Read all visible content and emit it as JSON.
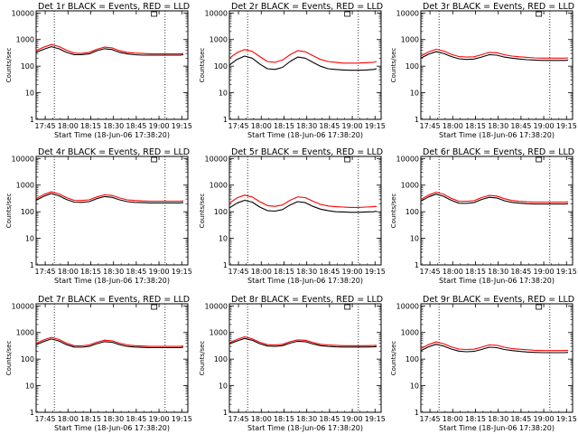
{
  "colors": {
    "events": "#000000",
    "lld": "#ff0000",
    "background": "#ffffff"
  },
  "chart_data": [
    {
      "type": "line",
      "title": "Det 1r BLACK = Events, RED = LLD",
      "xlabel": "Start Time (18-Jun-06 17:38:20)",
      "ylabel": "Counts/sec",
      "x_ticks": [
        "17:45",
        "18:00",
        "18:15",
        "18:30",
        "18:45",
        "19:00",
        "19:15"
      ],
      "y_ticks": [
        "1",
        "10",
        "100",
        "1000",
        "10000"
      ],
      "yscale": "log",
      "ylim": [
        1,
        12000
      ],
      "x_minutes_range": [
        0,
        100
      ],
      "vlines_minutes": [
        12,
        85
      ],
      "x_minutes": [
        0,
        5,
        10,
        15,
        20,
        25,
        30,
        35,
        40,
        45,
        50,
        55,
        60,
        65,
        70,
        75,
        80,
        85,
        90,
        95,
        97
      ],
      "series": [
        {
          "name": "Events",
          "color": "#000000",
          "values": [
            330,
            430,
            540,
            450,
            330,
            270,
            270,
            290,
            380,
            450,
            420,
            330,
            290,
            270,
            260,
            260,
            260,
            260,
            260,
            260,
            270
          ]
        },
        {
          "name": "LLD",
          "color": "#ff0000",
          "values": [
            380,
            520,
            650,
            550,
            400,
            310,
            300,
            330,
            430,
            520,
            490,
            380,
            330,
            310,
            300,
            290,
            290,
            290,
            290,
            290,
            300
          ]
        }
      ]
    },
    {
      "type": "line",
      "title": "Det 2r BLACK = Events, RED = LLD",
      "xlabel": "Start Time (18-Jun-06 17:38:20)",
      "ylabel": "Counts/sec",
      "x_ticks": [
        "17:45",
        "18:00",
        "18:15",
        "18:30",
        "18:45",
        "19:00",
        "19:15"
      ],
      "y_ticks": [
        "1",
        "10",
        "100",
        "1000",
        "10000"
      ],
      "yscale": "log",
      "ylim": [
        1,
        12000
      ],
      "x_minutes_range": [
        0,
        100
      ],
      "vlines_minutes": [
        12,
        85
      ],
      "x_minutes": [
        0,
        5,
        10,
        15,
        20,
        25,
        30,
        35,
        40,
        45,
        50,
        55,
        60,
        65,
        70,
        75,
        80,
        85,
        90,
        95,
        97
      ],
      "series": [
        {
          "name": "Events",
          "color": "#000000",
          "values": [
            110,
            180,
            240,
            200,
            120,
            80,
            75,
            90,
            150,
            220,
            200,
            140,
            100,
            80,
            75,
            72,
            70,
            70,
            72,
            75,
            80
          ]
        },
        {
          "name": "LLD",
          "color": "#ff0000",
          "values": [
            200,
            320,
            420,
            360,
            230,
            150,
            140,
            170,
            270,
            380,
            350,
            250,
            180,
            150,
            140,
            130,
            130,
            130,
            135,
            140,
            150
          ]
        }
      ]
    },
    {
      "type": "line",
      "title": "Det 3r BLACK = Events, RED = LLD",
      "xlabel": "Start Time (18-Jun-06 17:38:20)",
      "ylabel": "Counts/sec",
      "x_ticks": [
        "17:45",
        "18:00",
        "18:15",
        "18:30",
        "18:45",
        "19:00",
        "19:15"
      ],
      "y_ticks": [
        "1",
        "10",
        "100",
        "1000",
        "10000"
      ],
      "yscale": "log",
      "ylim": [
        1,
        12000
      ],
      "x_minutes_range": [
        0,
        100
      ],
      "vlines_minutes": [
        12,
        85
      ],
      "x_minutes": [
        0,
        5,
        10,
        15,
        20,
        25,
        30,
        35,
        40,
        45,
        50,
        55,
        60,
        65,
        70,
        75,
        80,
        85,
        90,
        95,
        97
      ],
      "series": [
        {
          "name": "Events",
          "color": "#000000",
          "values": [
            200,
            280,
            350,
            300,
            230,
            190,
            180,
            185,
            220,
            270,
            260,
            220,
            200,
            185,
            175,
            170,
            165,
            165,
            165,
            165,
            170
          ]
        },
        {
          "name": "LLD",
          "color": "#ff0000",
          "values": [
            240,
            340,
            430,
            370,
            280,
            230,
            220,
            225,
            270,
            330,
            320,
            270,
            240,
            225,
            215,
            205,
            200,
            200,
            200,
            200,
            205
          ]
        }
      ]
    },
    {
      "type": "line",
      "title": "Det 4r BLACK = Events, RED = LLD",
      "xlabel": "Start Time (18-Jun-06 17:38:20)",
      "ylabel": "Counts/sec",
      "x_ticks": [
        "17:45",
        "18:00",
        "18:15",
        "18:30",
        "18:45",
        "19:00",
        "19:15"
      ],
      "y_ticks": [
        "1",
        "10",
        "100",
        "1000",
        "10000"
      ],
      "yscale": "log",
      "ylim": [
        1,
        12000
      ],
      "x_minutes_range": [
        0,
        100
      ],
      "vlines_minutes": [
        12,
        85
      ],
      "x_minutes": [
        0,
        5,
        10,
        15,
        20,
        25,
        30,
        35,
        40,
        45,
        50,
        55,
        60,
        65,
        70,
        75,
        80,
        85,
        90,
        95,
        97
      ],
      "series": [
        {
          "name": "Events",
          "color": "#000000",
          "values": [
            270,
            380,
            480,
            400,
            290,
            230,
            225,
            240,
            310,
            370,
            350,
            280,
            240,
            225,
            220,
            215,
            215,
            215,
            215,
            215,
            220
          ]
        },
        {
          "name": "LLD",
          "color": "#ff0000",
          "values": [
            310,
            440,
            560,
            470,
            340,
            270,
            265,
            280,
            360,
            430,
            410,
            330,
            280,
            265,
            255,
            250,
            250,
            250,
            250,
            250,
            255
          ]
        }
      ]
    },
    {
      "type": "line",
      "title": "Det 5r BLACK = Events, RED = LLD",
      "xlabel": "Start Time (18-Jun-06 17:38:20)",
      "ylabel": "Counts/sec",
      "x_ticks": [
        "17:45",
        "18:00",
        "18:15",
        "18:30",
        "18:45",
        "19:00",
        "19:15"
      ],
      "y_ticks": [
        "1",
        "10",
        "100",
        "1000",
        "10000"
      ],
      "yscale": "log",
      "ylim": [
        1,
        12000
      ],
      "x_minutes_range": [
        0,
        100
      ],
      "vlines_minutes": [
        12,
        85
      ],
      "x_minutes": [
        0,
        5,
        10,
        15,
        20,
        25,
        30,
        35,
        40,
        45,
        50,
        55,
        60,
        65,
        70,
        75,
        80,
        85,
        90,
        95,
        97
      ],
      "series": [
        {
          "name": "Events",
          "color": "#000000",
          "values": [
            140,
            210,
            270,
            230,
            150,
            110,
            105,
            120,
            180,
            240,
            220,
            160,
            125,
            110,
            100,
            98,
            95,
            95,
            98,
            100,
            105
          ]
        },
        {
          "name": "LLD",
          "color": "#ff0000",
          "values": [
            210,
            330,
            420,
            360,
            240,
            170,
            160,
            180,
            270,
            360,
            340,
            250,
            190,
            165,
            155,
            150,
            145,
            145,
            150,
            155,
            160
          ]
        }
      ]
    },
    {
      "type": "line",
      "title": "Det 6r BLACK = Events, RED = LLD",
      "xlabel": "Start Time (18-Jun-06 17:38:20)",
      "ylabel": "Counts/sec",
      "x_ticks": [
        "17:45",
        "18:00",
        "18:15",
        "18:30",
        "18:45",
        "19:00",
        "19:15"
      ],
      "y_ticks": [
        "1",
        "10",
        "100",
        "1000",
        "10000"
      ],
      "yscale": "log",
      "ylim": [
        1,
        12000
      ],
      "x_minutes_range": [
        0,
        100
      ],
      "vlines_minutes": [
        12,
        85
      ],
      "x_minutes": [
        0,
        5,
        10,
        15,
        20,
        25,
        30,
        35,
        40,
        45,
        50,
        55,
        60,
        65,
        70,
        75,
        80,
        85,
        90,
        95,
        97
      ],
      "series": [
        {
          "name": "Events",
          "color": "#000000",
          "values": [
            250,
            360,
            460,
            380,
            270,
            210,
            205,
            220,
            290,
            350,
            330,
            260,
            225,
            210,
            200,
            195,
            195,
            195,
            195,
            195,
            200
          ]
        },
        {
          "name": "LLD",
          "color": "#ff0000",
          "values": [
            290,
            420,
            540,
            450,
            320,
            250,
            245,
            260,
            340,
            410,
            390,
            310,
            265,
            245,
            235,
            230,
            230,
            230,
            230,
            230,
            235
          ]
        }
      ]
    },
    {
      "type": "line",
      "title": "Det 7r BLACK = Events, RED = LLD",
      "xlabel": "Start Time (18-Jun-06 17:38:20)",
      "ylabel": "Counts/sec",
      "x_ticks": [
        "17:45",
        "18:00",
        "18:15",
        "18:30",
        "18:45",
        "19:00",
        "19:15"
      ],
      "y_ticks": [
        "1",
        "10",
        "100",
        "1000",
        "10000"
      ],
      "yscale": "log",
      "ylim": [
        1,
        12000
      ],
      "x_minutes_range": [
        0,
        100
      ],
      "vlines_minutes": [
        12,
        85
      ],
      "x_minutes": [
        0,
        5,
        10,
        15,
        20,
        25,
        30,
        35,
        40,
        45,
        50,
        55,
        60,
        65,
        70,
        75,
        80,
        85,
        90,
        95,
        97
      ],
      "series": [
        {
          "name": "Events",
          "color": "#000000",
          "values": [
            350,
            460,
            570,
            480,
            350,
            285,
            280,
            300,
            380,
            450,
            430,
            350,
            300,
            285,
            275,
            270,
            270,
            270,
            270,
            270,
            280
          ]
        },
        {
          "name": "LLD",
          "color": "#ff0000",
          "values": [
            390,
            530,
            660,
            550,
            400,
            320,
            315,
            340,
            430,
            510,
            490,
            400,
            340,
            320,
            310,
            300,
            300,
            300,
            300,
            300,
            310
          ]
        }
      ]
    },
    {
      "type": "line",
      "title": "Det 8r BLACK = Events, RED = LLD",
      "xlabel": "Start Time (18-Jun-06 17:38:20)",
      "ylabel": "Counts/sec",
      "x_ticks": [
        "17:45",
        "18:00",
        "18:15",
        "18:30",
        "18:45",
        "19:00",
        "19:15"
      ],
      "y_ticks": [
        "1",
        "10",
        "100",
        "1000",
        "10000"
      ],
      "yscale": "log",
      "ylim": [
        1,
        12000
      ],
      "x_minutes_range": [
        0,
        100
      ],
      "vlines_minutes": [
        12,
        85
      ],
      "x_minutes": [
        0,
        5,
        10,
        15,
        20,
        25,
        30,
        35,
        40,
        45,
        50,
        55,
        60,
        65,
        70,
        75,
        80,
        85,
        90,
        95,
        97
      ],
      "series": [
        {
          "name": "Events",
          "color": "#000000",
          "values": [
            370,
            480,
            600,
            510,
            380,
            310,
            300,
            320,
            400,
            470,
            450,
            370,
            320,
            300,
            290,
            285,
            285,
            285,
            285,
            290,
            295
          ]
        },
        {
          "name": "LLD",
          "color": "#ff0000",
          "values": [
            410,
            550,
            690,
            580,
            430,
            350,
            340,
            360,
            450,
            530,
            510,
            420,
            360,
            340,
            330,
            320,
            320,
            320,
            320,
            325,
            330
          ]
        }
      ]
    },
    {
      "type": "line",
      "title": "Det 9r BLACK = Events, RED = LLD",
      "xlabel": "Start Time (18-Jun-06 17:38:20)",
      "ylabel": "Counts/sec",
      "x_ticks": [
        "17:45",
        "18:00",
        "18:15",
        "18:30",
        "18:45",
        "19:00",
        "19:15"
      ],
      "y_ticks": [
        "1",
        "10",
        "100",
        "1000",
        "10000"
      ],
      "yscale": "log",
      "ylim": [
        1,
        12000
      ],
      "x_minutes_range": [
        0,
        100
      ],
      "vlines_minutes": [
        12,
        85
      ],
      "x_minutes": [
        0,
        5,
        10,
        15,
        20,
        25,
        30,
        35,
        40,
        45,
        50,
        55,
        60,
        65,
        70,
        75,
        80,
        85,
        90,
        95,
        97
      ],
      "series": [
        {
          "name": "Events",
          "color": "#000000",
          "values": [
            210,
            290,
            360,
            310,
            240,
            200,
            190,
            195,
            230,
            280,
            270,
            230,
            210,
            195,
            185,
            180,
            175,
            175,
            175,
            175,
            180
          ]
        },
        {
          "name": "LLD",
          "color": "#ff0000",
          "values": [
            250,
            350,
            440,
            380,
            290,
            240,
            230,
            235,
            280,
            340,
            330,
            280,
            250,
            235,
            225,
            215,
            210,
            210,
            210,
            210,
            215
          ]
        }
      ]
    }
  ]
}
